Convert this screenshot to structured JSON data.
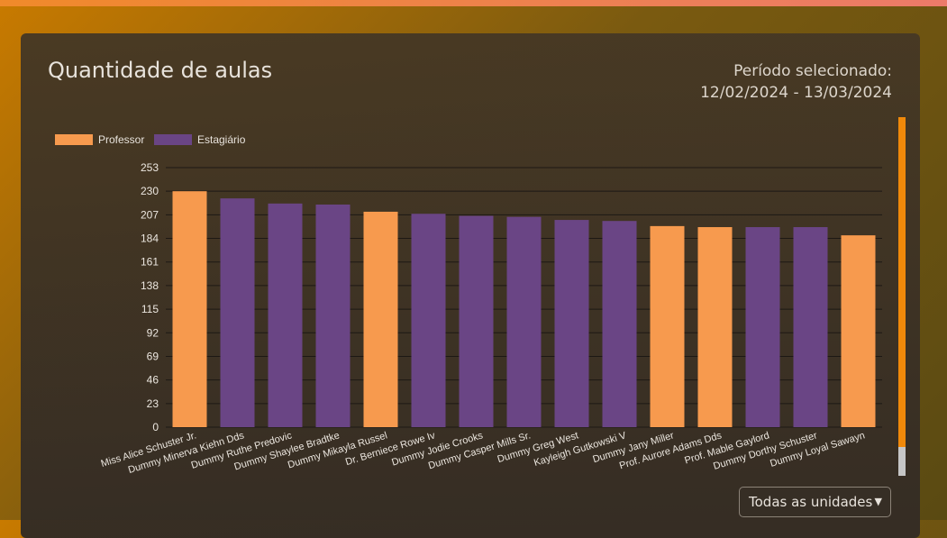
{
  "header": {
    "title": "Quantidade de aulas",
    "period_label": "Período selecionado:",
    "period_range": "12/02/2024 - 13/03/2024"
  },
  "filter": {
    "selected": "Todas as unidades"
  },
  "colors": {
    "professor": "#f79a4e",
    "estagiario": "#6a4585",
    "accent": "#f0890a"
  },
  "chart_data": {
    "type": "bar",
    "legend": [
      "Professor",
      "Estagiário"
    ],
    "legend_placement": "top-left",
    "ylim": [
      0,
      253
    ],
    "yticks": [
      0,
      23,
      46,
      69,
      92,
      115,
      138,
      161,
      184,
      207,
      230,
      253
    ],
    "grid": true,
    "categories": [
      "Miss Alice Schuster Jr.",
      "Dummy Minerva Kiehn Dds",
      "Dummy Ruthe Predovic",
      "Dummy Shaylee Bradtke",
      "Dummy Mikayla Russel",
      "Dr. Berniece Rowe Iv",
      "Dummy Jodie Crooks",
      "Dummy Casper Mills Sr.",
      "Dummy Greg West",
      "Kayleigh Gutkowski V",
      "Dummy Jany Miller",
      "Prof. Aurore Adams Dds",
      "Prof. Mable Gaylord",
      "Dummy Dorthy Schuster",
      "Dummy Loyal Sawayn"
    ],
    "values": [
      230,
      223,
      218,
      217,
      210,
      208,
      206,
      205,
      202,
      201,
      196,
      195,
      195,
      195,
      187
    ],
    "roles": [
      "Professor",
      "Estagiário",
      "Estagiário",
      "Estagiário",
      "Professor",
      "Estagiário",
      "Estagiário",
      "Estagiário",
      "Estagiário",
      "Estagiário",
      "Professor",
      "Professor",
      "Estagiário",
      "Estagiário",
      "Professor"
    ]
  }
}
